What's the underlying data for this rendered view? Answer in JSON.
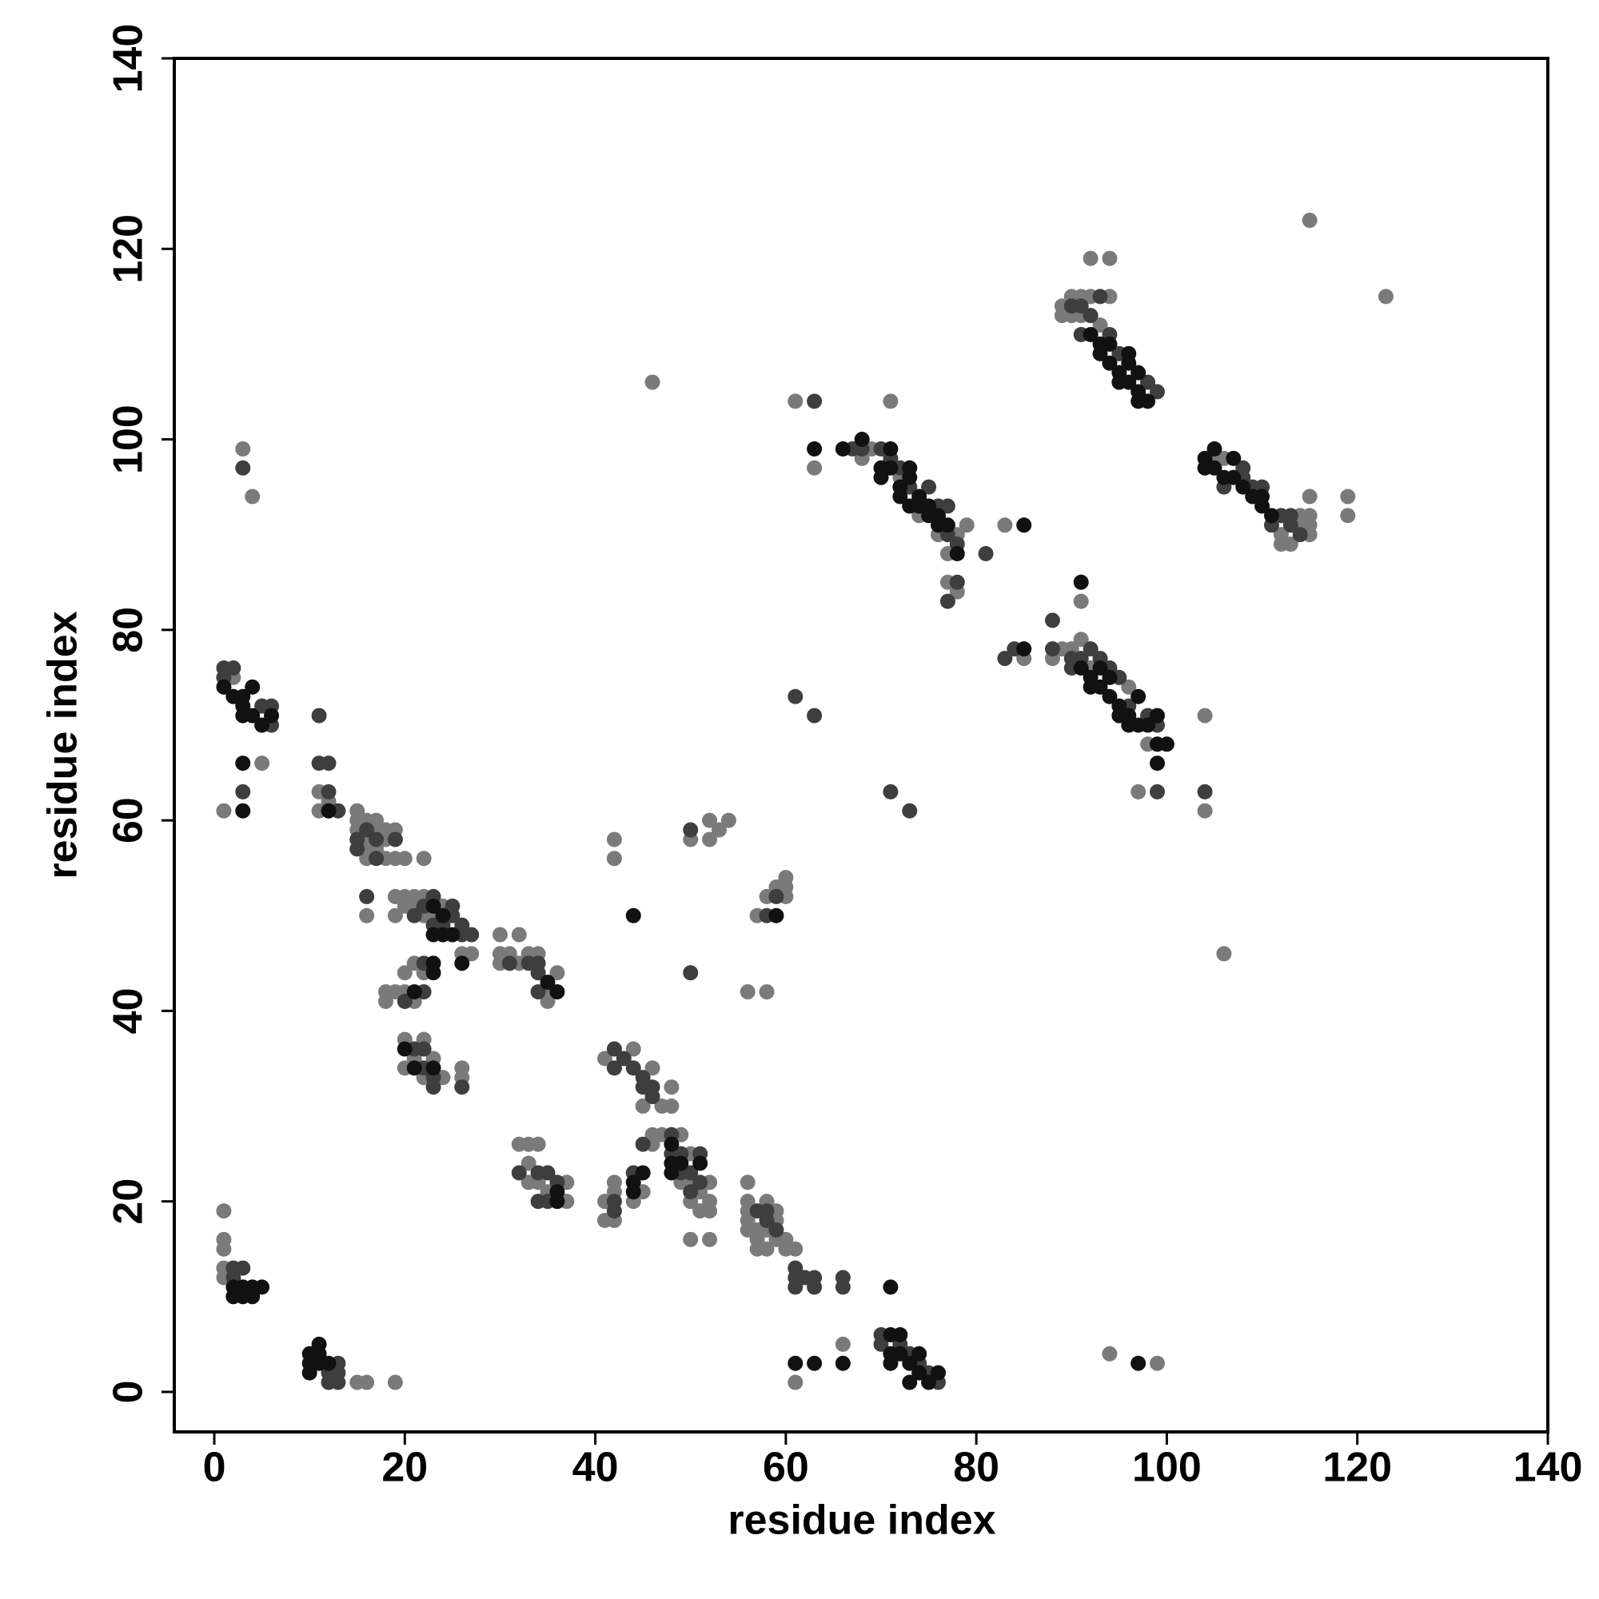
{
  "chart_data": {
    "type": "scatter",
    "xlabel": "residue index",
    "ylabel": "residue index",
    "xlim": [
      -4.2,
      140
    ],
    "ylim": [
      -4.2,
      140
    ],
    "xticks": [
      0,
      20,
      40,
      60,
      80,
      100,
      120,
      140
    ],
    "yticks": [
      0,
      20,
      40,
      60,
      80,
      100,
      120,
      140
    ],
    "series": [
      {
        "color": "#7a7a7a",
        "x": [
          2,
          1,
          5,
          3,
          4,
          1,
          1,
          1,
          1,
          1,
          15,
          16,
          19,
          11,
          11,
          12,
          15,
          15,
          16,
          17,
          15,
          16,
          17,
          18,
          19,
          18,
          16,
          17,
          18,
          19,
          20,
          22,
          16,
          16,
          19,
          20,
          21,
          22,
          19,
          20,
          21,
          22,
          23,
          24,
          26,
          27,
          18,
          18,
          19,
          20,
          21,
          22,
          20,
          21,
          20,
          22,
          20,
          21,
          23,
          24,
          26,
          26,
          22,
          30,
          32,
          30,
          31,
          30,
          32,
          33,
          34,
          36,
          35,
          35,
          32,
          33,
          34,
          33,
          34,
          35,
          37,
          37,
          33,
          41,
          42,
          42,
          41,
          41,
          42,
          42,
          44,
          45,
          46,
          46,
          46,
          47,
          45,
          48,
          48,
          42,
          44,
          50,
          52,
          52,
          53,
          54,
          47,
          49,
          50,
          51,
          52,
          52,
          50,
          51,
          52,
          50,
          52,
          49,
          50,
          56,
          56,
          56,
          56,
          57,
          57,
          58,
          58,
          59,
          59,
          60,
          60,
          61,
          58,
          57,
          59,
          56,
          56,
          58,
          57,
          58,
          60,
          60,
          60,
          59,
          61,
          66,
          94,
          99,
          46,
          61,
          63,
          71,
          68,
          69,
          72,
          74,
          76,
          77,
          78,
          79,
          77,
          78,
          83,
          85,
          88,
          89,
          90,
          91,
          91,
          92,
          97,
          98,
          96,
          89,
          89,
          90,
          91,
          92,
          92,
          94,
          94,
          90,
          91,
          93,
          105,
          106,
          112,
          112,
          113,
          114,
          114,
          115,
          115,
          115,
          115,
          119,
          119,
          115,
          123,
          104,
          104,
          106
        ],
        "y": [
          75,
          61,
          66,
          99,
          94,
          19,
          16,
          15,
          13,
          12,
          1,
          1,
          1,
          63,
          61,
          62,
          61,
          60,
          60,
          60,
          59,
          58,
          59,
          59,
          59,
          58,
          57,
          57,
          56,
          56,
          56,
          56,
          56,
          50,
          52,
          52,
          52,
          52,
          50,
          51,
          51,
          50,
          50,
          51,
          46,
          46,
          42,
          41,
          42,
          44,
          45,
          44,
          42,
          41,
          37,
          37,
          34,
          35,
          35,
          33,
          34,
          33,
          33,
          48,
          48,
          46,
          46,
          45,
          45,
          46,
          46,
          44,
          42,
          41,
          26,
          26,
          26,
          24,
          22,
          21,
          22,
          20,
          22,
          35,
          58,
          56,
          20,
          18,
          22,
          21,
          36,
          21,
          34,
          27,
          26,
          30,
          30,
          32,
          30,
          18,
          20,
          58,
          60,
          58,
          59,
          60,
          27,
          27,
          25,
          21,
          22,
          20,
          20,
          19,
          19,
          16,
          16,
          22,
          22,
          22,
          20,
          19,
          18,
          17,
          16,
          20,
          17,
          18,
          16,
          16,
          15,
          15,
          15,
          15,
          19,
          17,
          42,
          42,
          50,
          52,
          54,
          53,
          52,
          53,
          1,
          5,
          4,
          3,
          106,
          104,
          97,
          104,
          98,
          99,
          96,
          92,
          90,
          88,
          90,
          91,
          85,
          84,
          91,
          77,
          77,
          78,
          78,
          79,
          83,
          76,
          63,
          68,
          74,
          114,
          113,
          115,
          115,
          115,
          119,
          119,
          115,
          113,
          113,
          112,
          98,
          98,
          90,
          89,
          89,
          91,
          92,
          92,
          91,
          90,
          94,
          94,
          92,
          123,
          115,
          71,
          61,
          46
        ]
      },
      {
        "color": "#3e3e3e",
        "x": [
          1,
          2,
          5,
          6,
          6,
          1,
          3,
          3,
          2,
          3,
          2,
          12,
          13,
          13,
          12,
          13,
          11,
          11,
          12,
          12,
          13,
          15,
          16,
          17,
          19,
          15,
          17,
          16,
          21,
          22,
          23,
          25,
          24,
          25,
          26,
          27,
          23,
          26,
          22,
          22,
          20,
          21,
          22,
          22,
          23,
          23,
          26,
          31,
          33,
          34,
          34,
          34,
          32,
          34,
          35,
          36,
          34,
          35,
          42,
          42,
          43,
          44,
          45,
          45,
          46,
          46,
          42,
          42,
          44,
          45,
          50,
          50,
          48,
          48,
          49,
          50,
          51,
          51,
          49,
          50,
          57,
          58,
          58,
          59,
          61,
          61,
          62,
          63,
          66,
          61,
          63,
          66,
          58,
          59,
          70,
          70,
          72,
          73,
          74,
          75,
          76,
          61,
          63,
          71,
          73,
          63,
          67,
          68,
          70,
          71,
          72,
          73,
          75,
          76,
          77,
          77,
          78,
          78,
          77,
          81,
          83,
          84,
          88,
          88,
          90,
          91,
          93,
          94,
          95,
          96,
          98,
          99,
          99,
          92,
          90,
          90,
          91,
          92,
          93,
          91,
          94,
          95,
          98,
          99,
          106,
          108,
          108,
          109,
          110,
          111,
          112,
          113,
          113,
          114,
          104
        ],
        "y": [
          75,
          76,
          72,
          72,
          70,
          76,
          97,
          63,
          13,
          13,
          12,
          2,
          2,
          3,
          1,
          1,
          71,
          66,
          66,
          63,
          61,
          58,
          59,
          58,
          58,
          57,
          56,
          52,
          50,
          51,
          52,
          51,
          49,
          50,
          48,
          48,
          49,
          49,
          45,
          42,
          41,
          36,
          36,
          34,
          33,
          32,
          32,
          45,
          45,
          44,
          45,
          42,
          23,
          23,
          23,
          22,
          20,
          20,
          36,
          34,
          35,
          34,
          33,
          32,
          32,
          31,
          19,
          20,
          23,
          26,
          44,
          59,
          27,
          25,
          25,
          23,
          25,
          22,
          23,
          21,
          19,
          19,
          18,
          17,
          13,
          12,
          12,
          12,
          12,
          11,
          11,
          11,
          50,
          52,
          6,
          5,
          5,
          4,
          3,
          2,
          1,
          73,
          71,
          63,
          61,
          104,
          99,
          99,
          99,
          98,
          97,
          95,
          95,
          93,
          93,
          90,
          89,
          85,
          83,
          88,
          77,
          78,
          81,
          78,
          77,
          77,
          77,
          76,
          75,
          72,
          71,
          70,
          63,
          78,
          76,
          114,
          114,
          113,
          115,
          111,
          111,
          109,
          106,
          105,
          95,
          97,
          96,
          95,
          95,
          91,
          92,
          92,
          91,
          90,
          63
        ]
      },
      {
        "color": "#111111",
        "x": [
          1,
          2,
          3,
          3,
          4,
          4,
          5,
          6,
          3,
          3,
          3,
          2,
          3,
          3,
          4,
          4,
          5,
          2,
          10,
          10,
          11,
          11,
          11,
          12,
          10,
          12,
          23,
          23,
          24,
          25,
          24,
          26,
          23,
          23,
          21,
          20,
          21,
          23,
          36,
          35,
          36,
          36,
          45,
          44,
          44,
          44,
          48,
          48,
          49,
          51,
          48,
          59,
          61,
          63,
          66,
          71,
          72,
          71,
          72,
          73,
          74,
          74,
          73,
          75,
          76,
          71,
          71,
          97,
          63,
          66,
          68,
          70,
          70,
          71,
          71,
          72,
          72,
          73,
          73,
          74,
          74,
          75,
          76,
          76,
          77,
          78,
          73,
          75,
          85,
          85,
          91,
          91,
          92,
          92,
          93,
          94,
          95,
          95,
          96,
          96,
          97,
          97,
          98,
          99,
          99,
          100,
          99,
          93,
          94,
          92,
          93,
          93,
          94,
          95,
          95,
          96,
          96,
          97,
          97,
          98,
          97,
          94,
          96,
          104,
          104,
          105,
          106,
          107,
          107,
          108,
          109,
          110,
          110,
          111,
          105
        ],
        "y": [
          74,
          73,
          72,
          71,
          74,
          71,
          70,
          71,
          73,
          66,
          61,
          10,
          11,
          10,
          10,
          11,
          11,
          11,
          3,
          2,
          5,
          4,
          3,
          3,
          4,
          61,
          51,
          48,
          48,
          48,
          50,
          45,
          44,
          45,
          42,
          36,
          34,
          34,
          42,
          43,
          20,
          21,
          23,
          22,
          21,
          50,
          26,
          24,
          24,
          24,
          23,
          50,
          3,
          3,
          3,
          6,
          6,
          4,
          4,
          3,
          4,
          2,
          1,
          1,
          2,
          3,
          11,
          3,
          99,
          99,
          100,
          97,
          96,
          99,
          97,
          95,
          94,
          96,
          97,
          93,
          94,
          92,
          92,
          91,
          91,
          88,
          93,
          93,
          91,
          78,
          85,
          76,
          75,
          74,
          74,
          73,
          72,
          71,
          71,
          70,
          73,
          70,
          70,
          71,
          68,
          68,
          66,
          76,
          75,
          111,
          110,
          109,
          108,
          107,
          106,
          108,
          106,
          105,
          107,
          104,
          104,
          110,
          109,
          98,
          97,
          97,
          96,
          98,
          96,
          95,
          94,
          93,
          94,
          92,
          99
        ]
      }
    ]
  }
}
